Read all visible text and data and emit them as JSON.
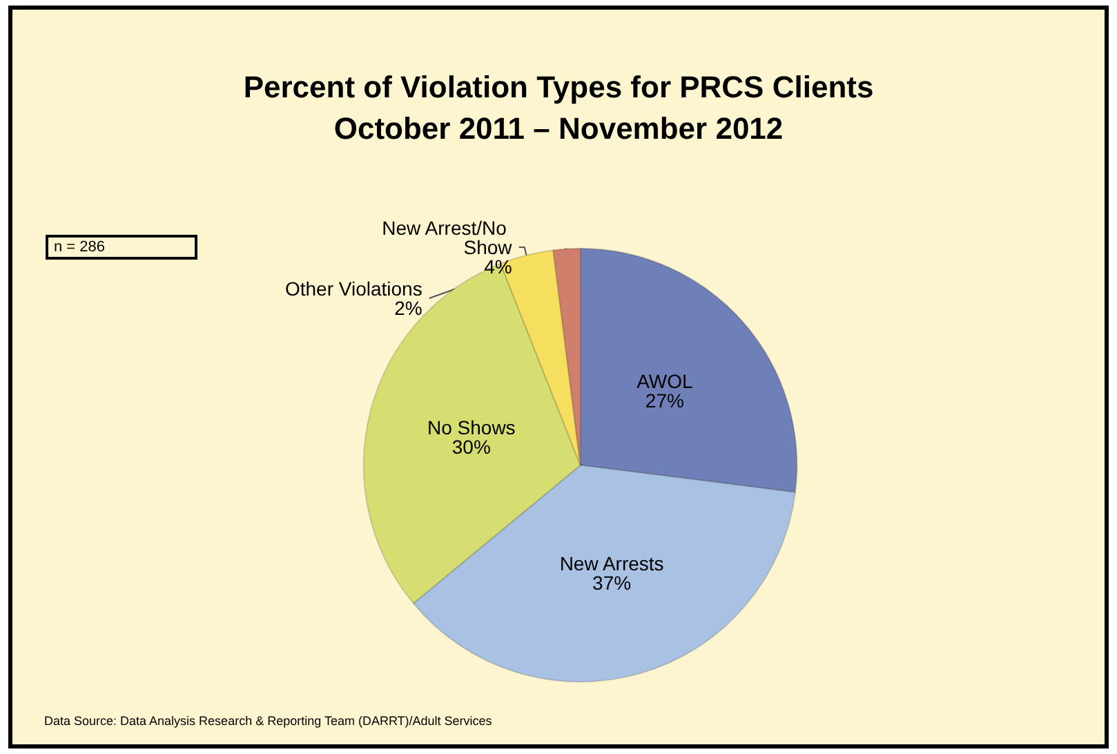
{
  "chart_data": {
    "type": "pie",
    "title": "Percent of Violation Types for PRCS Clients",
    "subtitle": "October 2011 – November 2012",
    "categories": [
      "AWOL",
      "New Arrests",
      "No Shows",
      "New Arrest/No Show",
      "Other Violations"
    ],
    "values": [
      27,
      37,
      30,
      4,
      2
    ],
    "colors": [
      "#6f7fb8",
      "#a9c1e3",
      "#d6de72",
      "#f6df5e",
      "#cf7f6c"
    ],
    "value_labels": [
      "27%",
      "37%",
      "30%",
      "4%",
      "2%"
    ],
    "legend": false,
    "annotations": [
      "n = 286",
      "Data Source: Data Analysis Research & Reporting Team (DARRT)/Adult Services"
    ]
  }
}
